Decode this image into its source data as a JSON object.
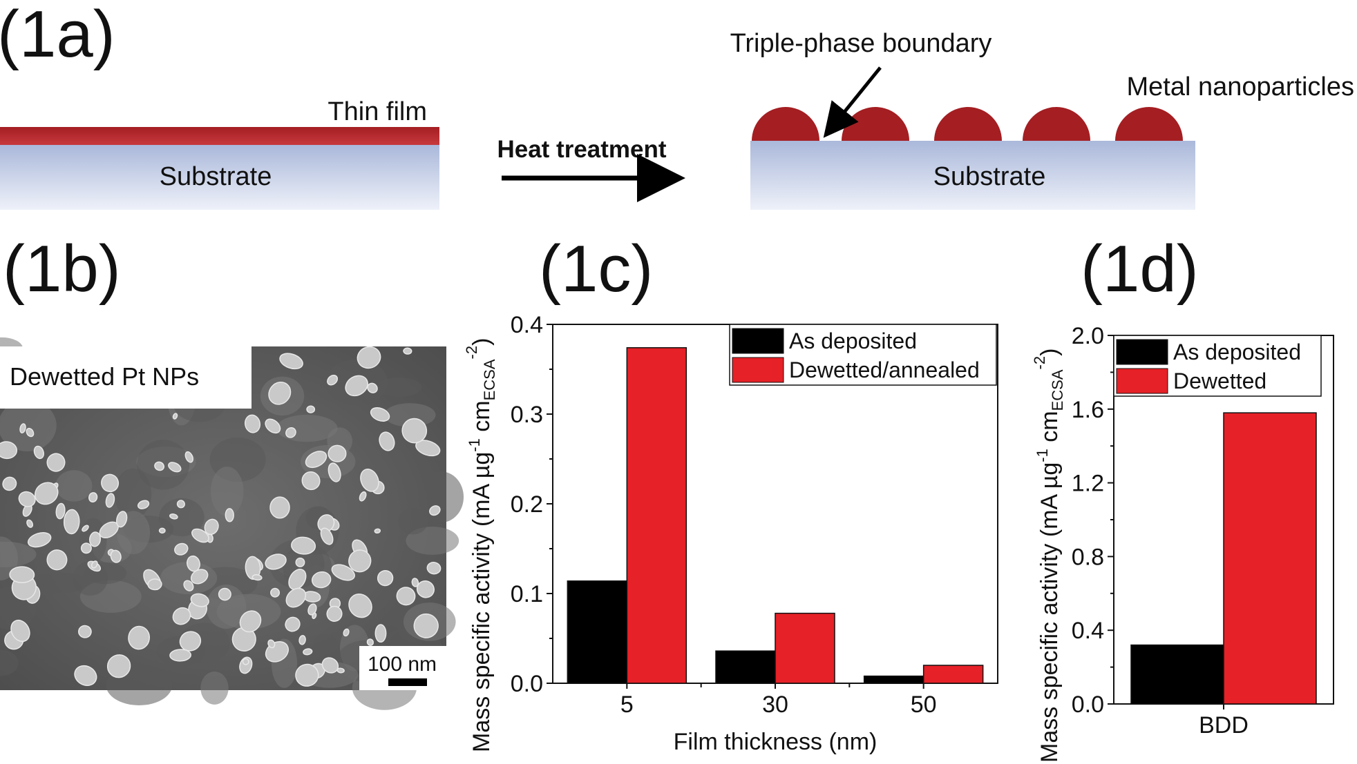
{
  "panels": {
    "a": "(1a)",
    "b": "(1b)",
    "c": "(1c)",
    "d": "(1d)"
  },
  "schematic": {
    "thin_film_label": "Thin film",
    "substrate_label_left": "Substrate",
    "heat_treatment_label": "Heat treatment",
    "substrate_label_right": "Substrate",
    "triple_phase_label": "Triple-phase boundary",
    "nanoparticles_label": "Metal nanoparticles",
    "colors": {
      "film": "#a41e22",
      "substrate_top": "#aab8da",
      "substrate_bottom": "#eef1f9"
    }
  },
  "sem": {
    "label": "Dewetted Pt NPs",
    "scale_bar_label": "100 nm"
  },
  "chart_data": [
    {
      "type": "bar",
      "panel": "(1c)",
      "categories": [
        "5",
        "30",
        "50"
      ],
      "series": [
        {
          "name": "As deposited",
          "color": "#000000",
          "values": [
            0.114,
            0.036,
            0.008
          ]
        },
        {
          "name": "Dewetted/annealed",
          "color": "#e62127",
          "values": [
            0.374,
            0.078,
            0.02
          ]
        }
      ],
      "xlabel": "Film thickness (nm)",
      "ylabel": {
        "main": "Mass specific activity (mA µg",
        "sup1": "-1",
        "mid": " cm",
        "sub": "ECSA",
        "sup2": "-2",
        "end": ")"
      },
      "ylim": [
        0,
        0.4
      ],
      "yticks": [
        "0.0",
        "0.1",
        "0.2",
        "0.3",
        "0.4"
      ],
      "legend_position": "top-right"
    },
    {
      "type": "bar",
      "panel": "(1d)",
      "categories": [
        "BDD"
      ],
      "series": [
        {
          "name": "As deposited",
          "color": "#000000",
          "values": [
            0.32
          ]
        },
        {
          "name": "Dewetted",
          "color": "#e62127",
          "values": [
            1.58
          ]
        }
      ],
      "xlabel": "",
      "ylabel": {
        "main": "Mass specific activity (mA µg",
        "sup1": "-1",
        "mid": " cm",
        "sub": "ECSA",
        "sup2": "-2",
        "end": ")"
      },
      "ylim": [
        0,
        2.0
      ],
      "yticks": [
        "0.0",
        "0.4",
        "0.8",
        "1.2",
        "1.6",
        "2.0"
      ],
      "legend_position": "top-left"
    }
  ]
}
